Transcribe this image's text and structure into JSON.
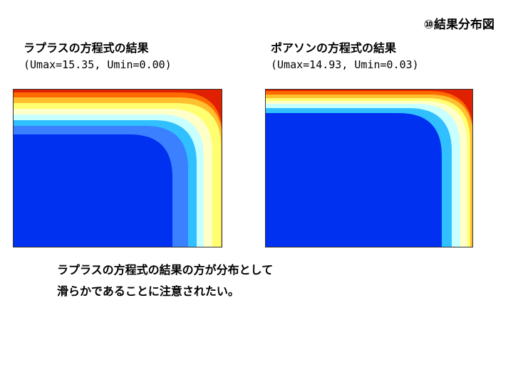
{
  "header": {
    "title": "⑩結果分布図"
  },
  "panels": [
    {
      "heading": "ラプラスの方程式の結果",
      "stats": "(Umax=15.35, Umin=0.00)"
    },
    {
      "heading": "ポアソンの方程式の結果",
      "stats": "(Umax=14.93, Umin=0.03)"
    }
  ],
  "note": {
    "lines": [
      "ラプラスの方程式の結果の方が分布として",
      "滑らかであることに注意されたい。"
    ]
  }
}
